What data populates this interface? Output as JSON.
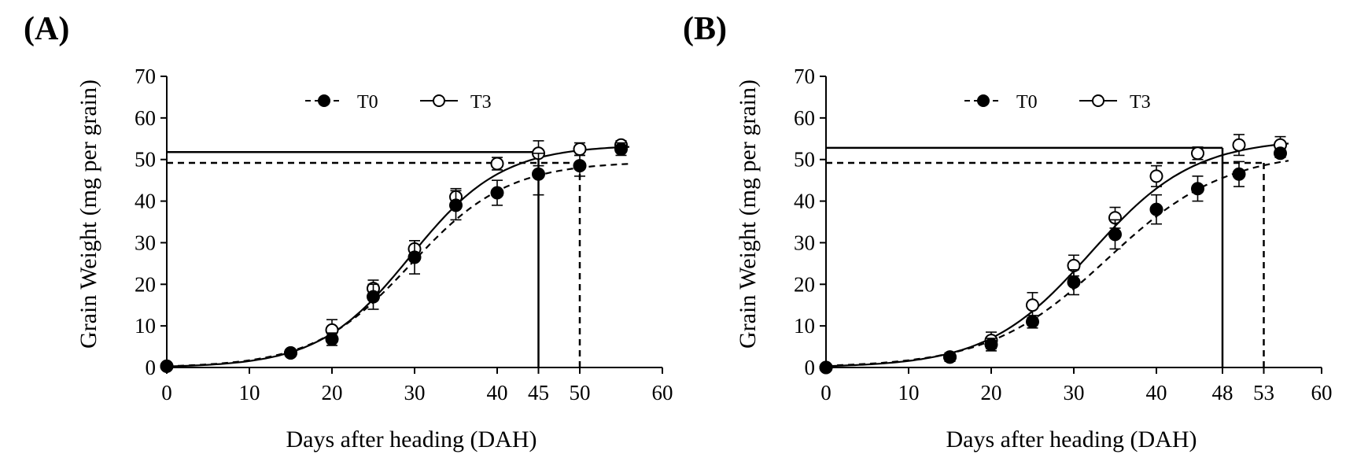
{
  "chart_data": [
    {
      "type": "scatter",
      "panel_label": "(A)",
      "xlabel": "Days after heading (DAH)",
      "ylabel": "Grain Weight (mg per grain)",
      "xlim": [
        0,
        60
      ],
      "ylim": [
        0,
        70
      ],
      "xticks": [
        0,
        10,
        20,
        30,
        40,
        50,
        60
      ],
      "yticks": [
        0,
        10,
        20,
        30,
        40,
        50,
        60,
        70
      ],
      "extra_xticks": [
        45
      ],
      "grid": false,
      "legend_position": "top-center",
      "series": [
        {
          "name": "T0",
          "marker": "filled-circle",
          "fit_line": "dashed",
          "x": [
            0,
            15,
            20,
            25,
            30,
            35,
            40,
            45,
            50,
            55
          ],
          "y": [
            0.3,
            3.5,
            6.8,
            17.0,
            26.5,
            39.0,
            42.0,
            46.5,
            48.5,
            52.5
          ],
          "error": [
            0.5,
            0.8,
            1.5,
            3.0,
            4.0,
            3.5,
            3.0,
            5.0,
            2.5,
            1.5
          ],
          "fit": {
            "asymptote": 49.5,
            "midpoint": 29.5,
            "rate": 0.17
          },
          "plateau_y": 49.2,
          "plateau_x": 50
        },
        {
          "name": "T3",
          "marker": "open-circle",
          "fit_line": "solid",
          "x": [
            0,
            15,
            20,
            25,
            30,
            35,
            40,
            45,
            50,
            55
          ],
          "y": [
            0.3,
            3.5,
            9.0,
            19.0,
            28.5,
            41.0,
            49.0,
            51.5,
            52.5,
            53.5
          ],
          "error": [
            0.5,
            0.8,
            2.5,
            2.0,
            2.0,
            2.0,
            1.5,
            3.0,
            1.5,
            1.0
          ],
          "fit": {
            "asymptote": 53.5,
            "midpoint": 29.5,
            "rate": 0.18
          },
          "plateau_y": 51.8,
          "plateau_x": 45
        }
      ]
    },
    {
      "type": "scatter",
      "panel_label": "(B)",
      "xlabel": "Days after heading (DAH)",
      "ylabel": "Grain Weight (mg per grain)",
      "xlim": [
        0,
        60
      ],
      "ylim": [
        0,
        70
      ],
      "xticks": [
        0,
        10,
        20,
        30,
        40,
        60
      ],
      "yticks": [
        0,
        10,
        20,
        30,
        40,
        50,
        60,
        70
      ],
      "extra_xticks": [
        48,
        53
      ],
      "grid": false,
      "legend_position": "top-center",
      "series": [
        {
          "name": "T0",
          "marker": "filled-circle",
          "fit_line": "dashed",
          "x": [
            0,
            15,
            20,
            25,
            30,
            35,
            40,
            45,
            50,
            55
          ],
          "y": [
            0.0,
            2.5,
            5.5,
            11.0,
            20.5,
            32.0,
            38.0,
            43.0,
            46.5,
            51.5
          ],
          "error": [
            0.3,
            1.0,
            1.5,
            1.5,
            3.0,
            3.5,
            3.5,
            3.0,
            3.0,
            1.0
          ],
          "fit": {
            "asymptote": 52.0,
            "midpoint": 34.0,
            "rate": 0.14
          },
          "plateau_y": 49.2,
          "plateau_x": 53
        },
        {
          "name": "T3",
          "marker": "open-circle",
          "fit_line": "solid",
          "x": [
            0,
            15,
            20,
            25,
            30,
            35,
            40,
            45,
            50,
            55
          ],
          "y": [
            0.0,
            2.5,
            6.5,
            15.0,
            24.5,
            36.0,
            46.0,
            51.5,
            53.5,
            53.5
          ],
          "error": [
            0.3,
            1.0,
            2.0,
            3.0,
            2.5,
            2.5,
            2.5,
            1.5,
            2.5,
            2.0
          ],
          "fit": {
            "asymptote": 55.0,
            "midpoint": 32.0,
            "rate": 0.16
          },
          "plateau_y": 52.8,
          "plateau_x": 48
        }
      ]
    }
  ]
}
